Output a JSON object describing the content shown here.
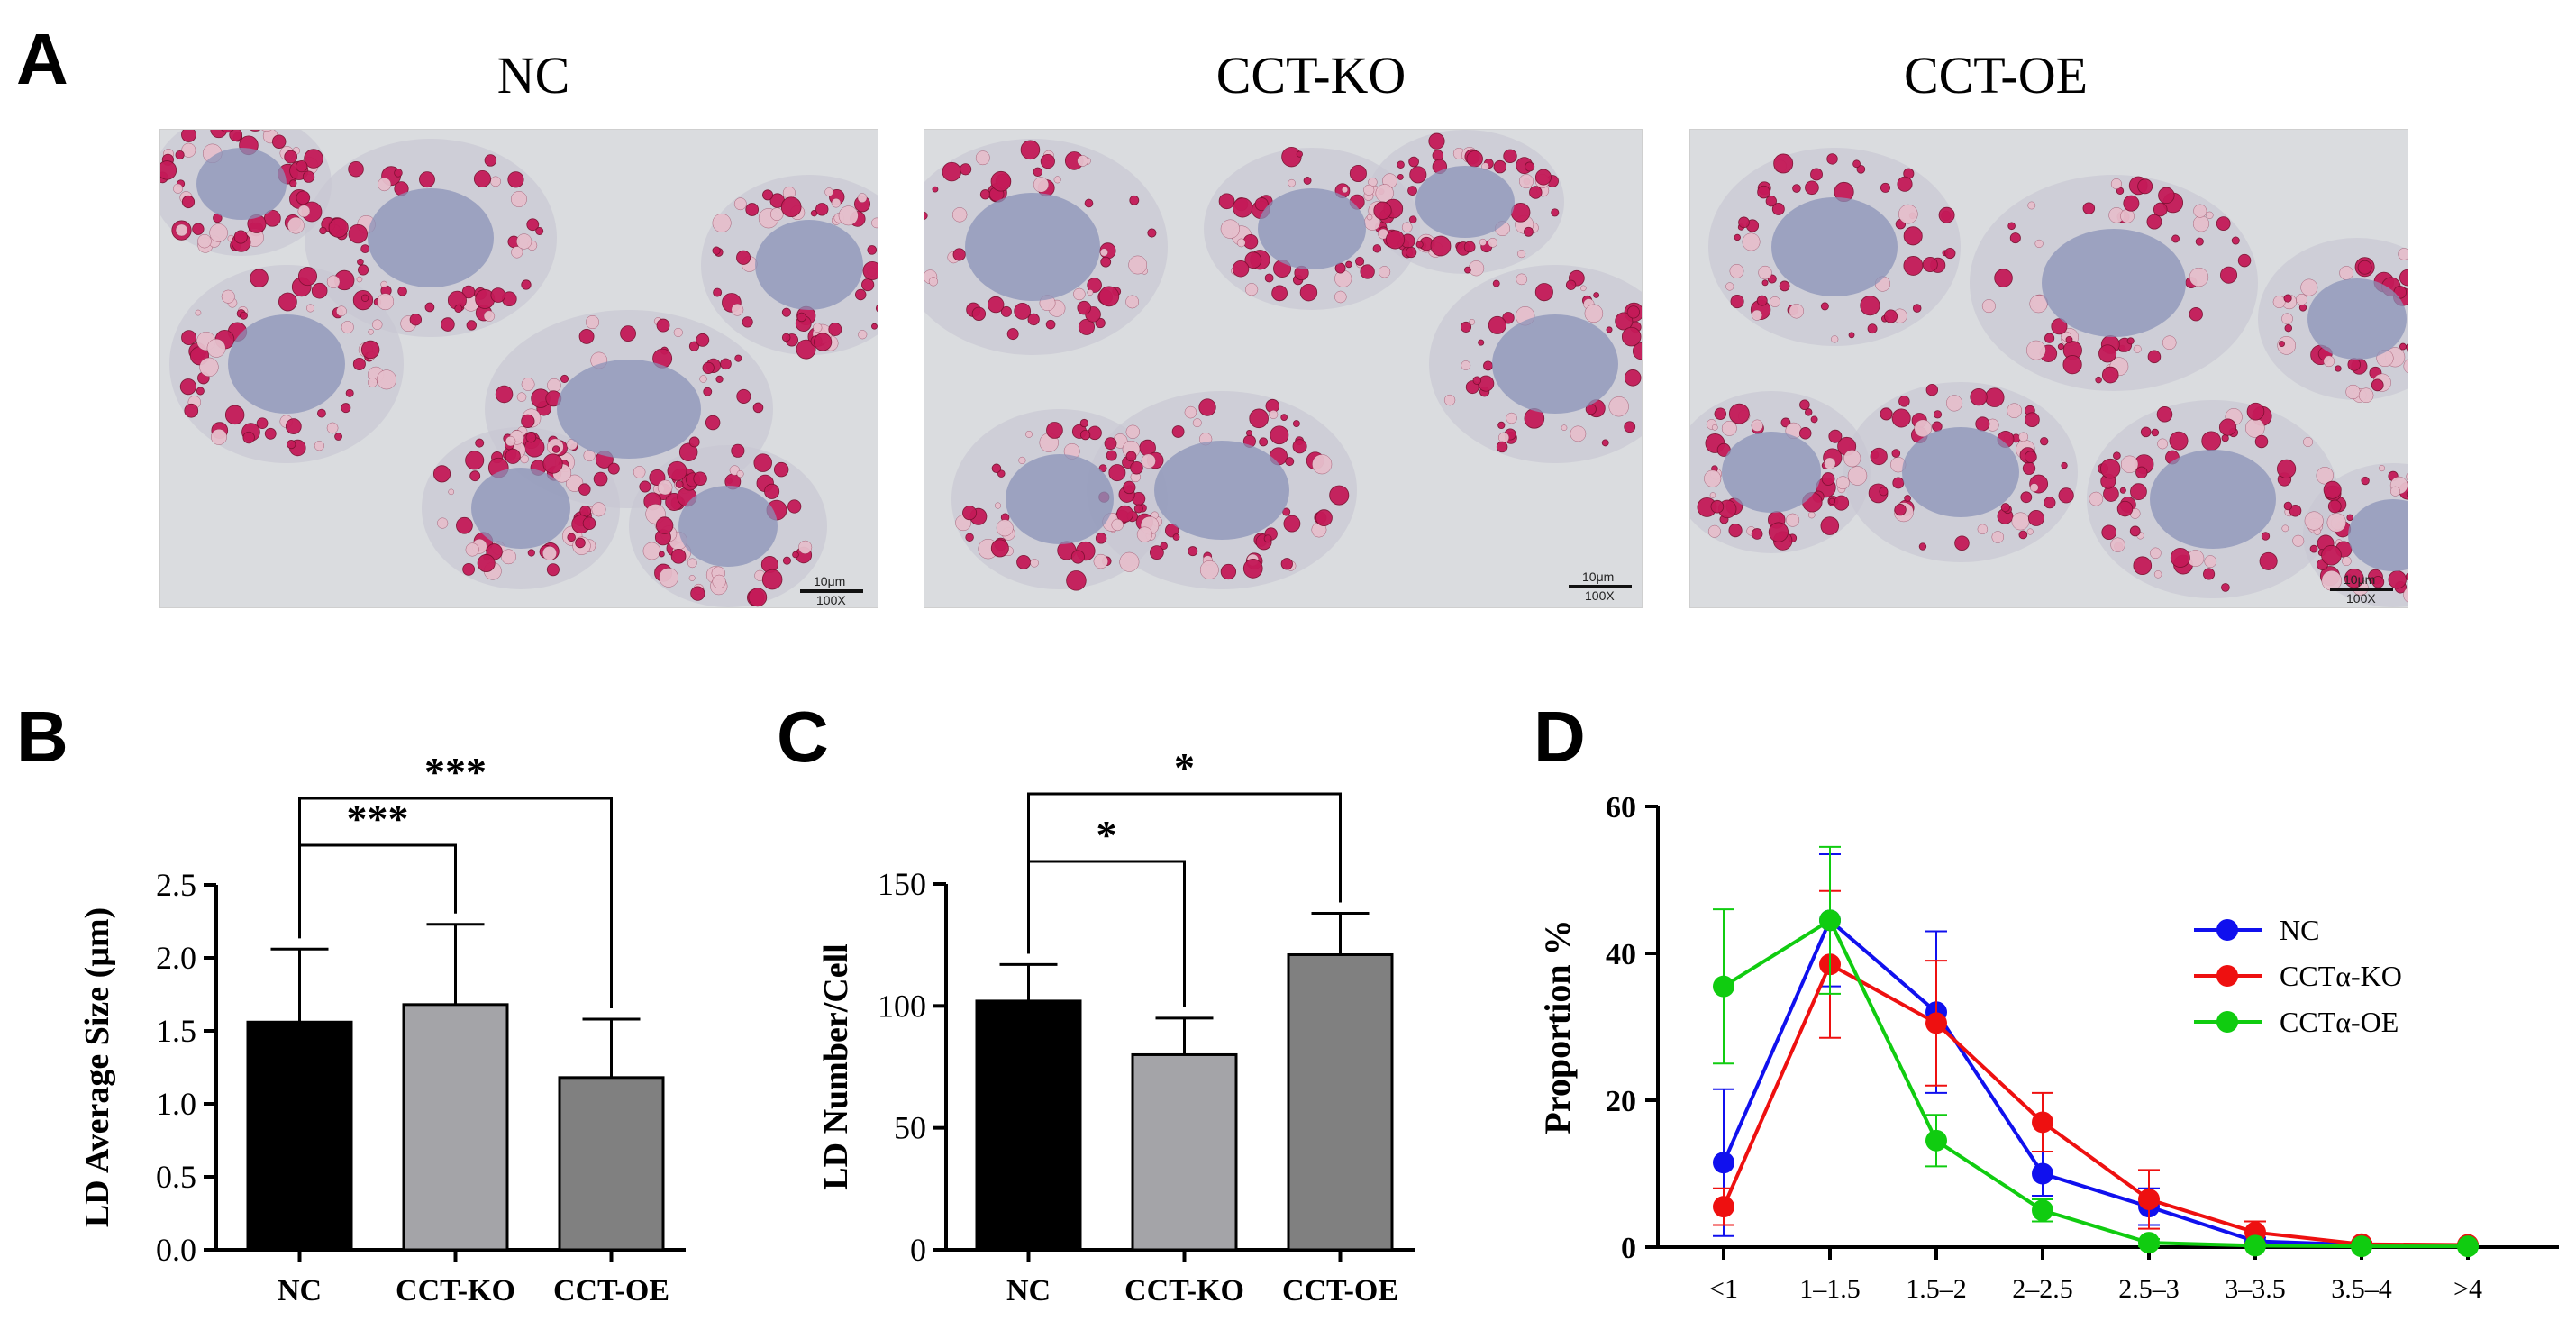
{
  "panels": {
    "a": "A",
    "b": "B",
    "c": "C",
    "d": "D"
  },
  "micrographs": [
    {
      "title": "NC",
      "scale_label": "10μm",
      "mag_label": "100X"
    },
    {
      "title": "CCT-KO",
      "scale_label": "10μm",
      "mag_label": "100X"
    },
    {
      "title": "CCT-OE",
      "scale_label": "10μm",
      "mag_label": "100X"
    }
  ],
  "chart_data": [
    {
      "id": "B",
      "type": "bar",
      "categories": [
        "NC",
        "CCT-KO",
        "CCT-OE"
      ],
      "values": [
        1.56,
        1.68,
        1.18
      ],
      "errors": [
        0.5,
        0.55,
        0.4
      ],
      "colors": [
        "#000000",
        "#a4a4a8",
        "#808080"
      ],
      "ylabel": "LD Average Size (μm)",
      "ylim": [
        0,
        2.5
      ],
      "yticks": [
        "0.0",
        "0.5",
        "1.0",
        "1.5",
        "2.0",
        "2.5"
      ],
      "significance": [
        {
          "from": 0,
          "to": 1,
          "label": "***"
        },
        {
          "from": 0,
          "to": 2,
          "label": "***"
        }
      ]
    },
    {
      "id": "C",
      "type": "bar",
      "categories": [
        "NC",
        "CCT-KO",
        "CCT-OE"
      ],
      "values": [
        102,
        80,
        121
      ],
      "errors": [
        15,
        15,
        17
      ],
      "colors": [
        "#000000",
        "#a4a4a8",
        "#808080"
      ],
      "ylabel": "LD Number/Cell",
      "ylim": [
        0,
        150
      ],
      "yticks": [
        "0",
        "50",
        "100",
        "150"
      ],
      "significance": [
        {
          "from": 0,
          "to": 1,
          "label": "*"
        },
        {
          "from": 0,
          "to": 2,
          "label": "*"
        }
      ]
    },
    {
      "id": "D",
      "type": "line",
      "categories": [
        "<1",
        "1–1.5",
        "1.5–2",
        "2–2.5",
        "2.5–3",
        "3–3.5",
        "3.5–4",
        ">4"
      ],
      "ylabel": "Proportion %",
      "ylim": [
        0,
        60
      ],
      "yticks": [
        "0",
        "20",
        "40",
        "60"
      ],
      "legend_position": "right",
      "series": [
        {
          "name": "NC",
          "color": "#1010ee",
          "values": [
            11.5,
            44.5,
            32,
            10,
            5.5,
            0.8,
            0.3,
            0.2
          ],
          "errors": [
            10,
            9,
            11,
            3,
            2.5,
            0.5,
            0.2,
            0.1
          ]
        },
        {
          "name": "CCTα-KO",
          "color": "#ee1010",
          "values": [
            5.5,
            38.5,
            30.5,
            17,
            6.5,
            2,
            0.4,
            0.3
          ],
          "errors": [
            2.5,
            10,
            8.5,
            4,
            4,
            1.5,
            0.3,
            0.2
          ]
        },
        {
          "name": "CCTα-OE",
          "color": "#10cc10",
          "values": [
            35.5,
            44.5,
            14.5,
            5,
            0.6,
            0.2,
            0.1,
            0.1
          ],
          "errors": [
            10.5,
            10,
            3.5,
            1.5,
            0.5,
            0.1,
            0.1,
            0.1
          ]
        }
      ]
    }
  ]
}
